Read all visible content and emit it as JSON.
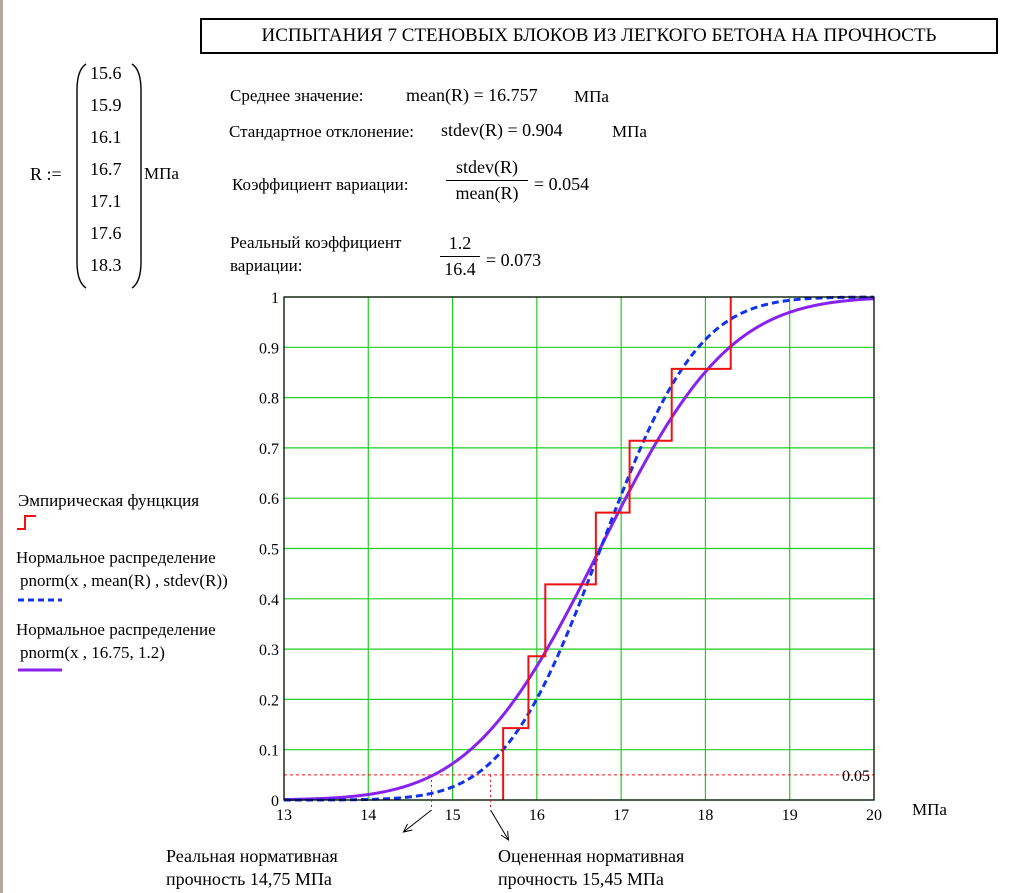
{
  "title": "ИСПЫТАНИЯ 7 СТЕНОВЫХ БЛОКОВ ИЗ ЛЕГКОГО БЕТОНА НА ПРОЧНОСТЬ",
  "vector": {
    "name": "R :=",
    "values": [
      "15.6",
      "15.9",
      "16.1",
      "16.7",
      "17.1",
      "17.6",
      "18.3"
    ],
    "unit": "МПа"
  },
  "stats": {
    "mean_label": "Среднее значение:",
    "mean_expr": "mean(R) = 16.757",
    "mean_unit": "МПа",
    "stdev_label": "Стандартное отклонение:",
    "stdev_expr": "stdev(R) = 0.904",
    "stdev_unit": "МПа",
    "cv_label": "Коэффициент вариации:",
    "cv_num": "stdev(R)",
    "cv_den": "mean(R)",
    "cv_value": "= 0.054",
    "real_cv_label_1": "Реальный коэффициент",
    "real_cv_label_2": "вариации:",
    "real_cv_num": "1.2",
    "real_cv_den": "16.4",
    "real_cv_value": "= 0.073"
  },
  "legend": {
    "empirical": "Эмпирическая фунцкция",
    "normal_est_title": "Нормальное распределение",
    "normal_est_formula": "pnorm(x , mean(R) , stdev(R))",
    "normal_real_title": "Нормальное распределение",
    "normal_real_formula": "pnorm(x , 16.75, 1.2)"
  },
  "annotations": {
    "real_1": "Реальная нормативная",
    "real_2": "прочность 14,75 МПа",
    "est_1": "Оцененная нормативная",
    "est_2": "прочность 15,45 МПа"
  },
  "colors": {
    "grid": "#22cc22",
    "empirical": "#ee1111",
    "normal_est": "#1133ee",
    "normal_real": "#8822ee",
    "level": "#ee1111"
  },
  "chart_data": {
    "type": "line",
    "xlabel": "МПа",
    "xlim": [
      13,
      20
    ],
    "ylim": [
      0,
      1
    ],
    "x_ticks": [
      13,
      14,
      15,
      16,
      17,
      18,
      19,
      20
    ],
    "y_ticks": [
      0,
      0.1,
      0.2,
      0.3,
      0.4,
      0.5,
      0.6,
      0.7,
      0.8,
      0.9,
      1
    ],
    "grid": true,
    "level_line": {
      "y": 0.05,
      "label": "0.05"
    },
    "series": [
      {
        "name": "Эмпирическая фунцкция",
        "kind": "step",
        "x": [
          15.6,
          15.9,
          16.1,
          16.7,
          17.1,
          17.6,
          18.3
        ],
        "y": [
          0.1429,
          0.2857,
          0.4286,
          0.5714,
          0.7143,
          0.8571,
          1.0
        ]
      },
      {
        "name": "pnorm(x , mean(R) , stdev(R))",
        "kind": "normal_cdf",
        "mean": 16.757,
        "sd": 0.904,
        "style": "dashed"
      },
      {
        "name": "pnorm(x , 16.75, 1.2)",
        "kind": "normal_cdf",
        "mean": 16.75,
        "sd": 1.2,
        "style": "solid"
      }
    ],
    "markers": [
      {
        "x": 14.75,
        "y": 0.05,
        "label": "Реальная нормативная прочность 14,75 МПа"
      },
      {
        "x": 15.45,
        "y": 0.05,
        "label": "Оцененная нормативная прочность 15,45 МПа"
      }
    ]
  }
}
